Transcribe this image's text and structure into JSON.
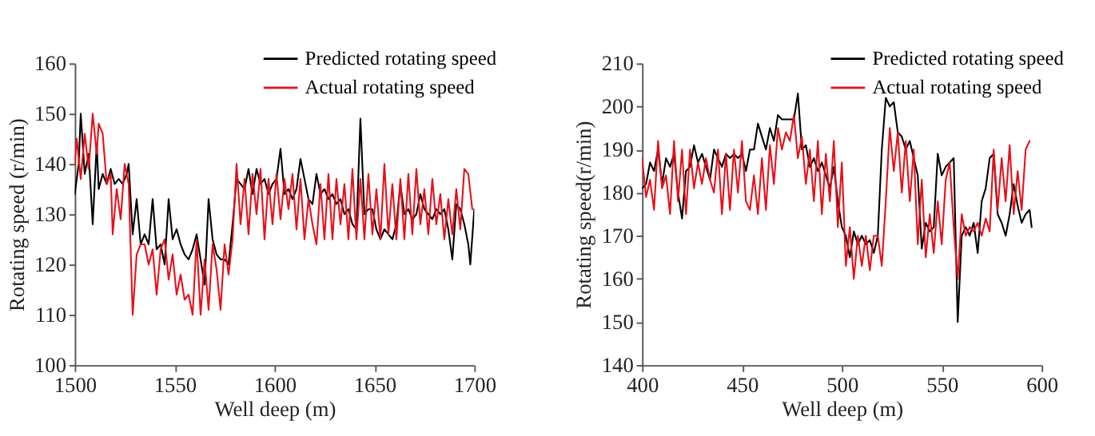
{
  "chart_data": [
    {
      "type": "line",
      "xlabel": "Well deep (m)",
      "ylabel": "Rotating speed (r/min)",
      "xlim": [
        1500,
        1700
      ],
      "xticks": [
        1500,
        1550,
        1600,
        1650,
        1700
      ],
      "ylim": [
        100,
        160
      ],
      "yticks": [
        100,
        110,
        120,
        130,
        140,
        150,
        160
      ],
      "grid": false,
      "legend": "top right",
      "marker": "none",
      "line_style": "solid",
      "series": [
        {
          "name": "Predicted rotating speed",
          "color": "#000000",
          "x": [
            1500,
            1502,
            1503,
            1505,
            1507,
            1509,
            1511,
            1512,
            1514,
            1516,
            1518,
            1520,
            1522,
            1524,
            1526,
            1527,
            1529,
            1531,
            1533,
            1535,
            1537,
            1539,
            1541,
            1543,
            1545,
            1547,
            1549,
            1551,
            1553,
            1555,
            1557,
            1559,
            1561,
            1563,
            1565,
            1567,
            1569,
            1571,
            1573,
            1575,
            1577,
            1579,
            1581,
            1583,
            1585,
            1587,
            1589,
            1591,
            1593,
            1595,
            1597,
            1599,
            1601,
            1603,
            1605,
            1607,
            1609,
            1611,
            1613,
            1615,
            1617,
            1619,
            1621,
            1623,
            1625,
            1627,
            1629,
            1631,
            1633,
            1635,
            1637,
            1639,
            1641,
            1643,
            1645,
            1647,
            1649,
            1651,
            1653,
            1655,
            1657,
            1659,
            1661,
            1663,
            1665,
            1667,
            1669,
            1671,
            1673,
            1675,
            1677,
            1679,
            1681,
            1683,
            1685,
            1687,
            1689,
            1691,
            1693,
            1695,
            1697,
            1698,
            1700
          ],
          "values": [
            134,
            140,
            150,
            138,
            142,
            128,
            144,
            135,
            138,
            136,
            139,
            136,
            137,
            136,
            138,
            140,
            126,
            133,
            124,
            126,
            124,
            133,
            123,
            124,
            120,
            133,
            125,
            127,
            124,
            122,
            121,
            123,
            126,
            121,
            116,
            133,
            125,
            122,
            121,
            121,
            120,
            128,
            137,
            136,
            135,
            139,
            134,
            139,
            136,
            137,
            134,
            136,
            137,
            143,
            134,
            135,
            133,
            135,
            141,
            137,
            133,
            132,
            138,
            134,
            135,
            133,
            134,
            132,
            133,
            130,
            131,
            128,
            127,
            149,
            130,
            131,
            131,
            127,
            125,
            127,
            126,
            125,
            128,
            136,
            130,
            131,
            129,
            130,
            134,
            131,
            130,
            129,
            131,
            130,
            131,
            127,
            121,
            132,
            131,
            128,
            124,
            120,
            131
          ]
        },
        {
          "name": "Actual rotating speed",
          "color": "#e8101a",
          "x": [
            1500,
            1501,
            1503,
            1505,
            1507,
            1509,
            1511,
            1512,
            1514,
            1516,
            1518,
            1519,
            1521,
            1523,
            1525,
            1527,
            1529,
            1531,
            1533,
            1535,
            1537,
            1539,
            1541,
            1543,
            1545,
            1547,
            1549,
            1551,
            1553,
            1555,
            1557,
            1559,
            1561,
            1563,
            1565,
            1567,
            1569,
            1571,
            1573,
            1575,
            1577,
            1579,
            1581,
            1583,
            1585,
            1587,
            1589,
            1591,
            1593,
            1595,
            1597,
            1599,
            1601,
            1603,
            1605,
            1607,
            1609,
            1611,
            1613,
            1615,
            1617,
            1619,
            1621,
            1623,
            1625,
            1627,
            1629,
            1631,
            1633,
            1635,
            1637,
            1639,
            1641,
            1643,
            1645,
            1647,
            1649,
            1651,
            1653,
            1655,
            1657,
            1659,
            1661,
            1663,
            1665,
            1667,
            1669,
            1671,
            1673,
            1675,
            1677,
            1679,
            1681,
            1683,
            1685,
            1687,
            1689,
            1691,
            1693,
            1695,
            1697,
            1699
          ],
          "values": [
            140,
            145,
            137,
            146,
            139,
            150,
            142,
            148,
            146,
            136,
            138,
            126,
            135,
            129,
            140,
            136,
            110,
            122,
            124,
            124,
            120,
            123,
            114,
            123,
            125,
            117,
            122,
            114,
            118,
            113,
            114,
            110,
            125,
            110,
            121,
            111,
            124,
            119,
            111,
            124,
            118,
            125,
            140,
            128,
            137,
            126,
            138,
            130,
            139,
            125,
            137,
            128,
            138,
            129,
            137,
            131,
            138,
            127,
            137,
            125,
            133,
            128,
            124,
            136,
            125,
            138,
            125,
            137,
            128,
            136,
            125,
            139,
            125,
            137,
            125,
            138,
            126,
            135,
            125,
            140,
            126,
            136,
            125,
            137,
            125,
            138,
            126,
            139,
            128,
            135,
            126,
            137,
            128,
            134,
            125,
            133,
            126,
            135,
            127,
            139,
            138,
            131
          ]
        }
      ]
    },
    {
      "type": "line",
      "xlabel": "Well deep (m)",
      "ylabel": "Rotating speed(r/min)",
      "xlim": [
        400,
        600
      ],
      "xticks": [
        400,
        450,
        500,
        550,
        600
      ],
      "ylim": [
        140,
        210
      ],
      "yticks": [
        140,
        150,
        160,
        170,
        180,
        190,
        200,
        210
      ],
      "grid": false,
      "legend": "top right",
      "marker": "none",
      "line_style": "solid",
      "series": [
        {
          "name": "Predicted rotating speed",
          "color": "#000000",
          "x": [
            400,
            402,
            404,
            406,
            408,
            410,
            412,
            414,
            416,
            418,
            420,
            422,
            424,
            426,
            428,
            430,
            432,
            434,
            436,
            438,
            440,
            442,
            444,
            446,
            448,
            450,
            452,
            454,
            456,
            458,
            460,
            462,
            464,
            466,
            468,
            470,
            472,
            474,
            476,
            478,
            480,
            482,
            484,
            486,
            488,
            490,
            492,
            494,
            496,
            498,
            500,
            502,
            504,
            506,
            508,
            510,
            512,
            514,
            516,
            518,
            520,
            522,
            524,
            526,
            528,
            530,
            532,
            534,
            536,
            538,
            540,
            542,
            544,
            546,
            548,
            550,
            552,
            554,
            556,
            558,
            560,
            562,
            564,
            566,
            568,
            570,
            572,
            574,
            576,
            578,
            580,
            582,
            584,
            586,
            588,
            590,
            592,
            594,
            595
          ],
          "values": [
            181,
            182,
            187,
            185,
            190,
            182,
            188,
            186,
            189,
            180,
            174,
            185,
            186,
            191,
            187,
            189,
            186,
            183,
            190,
            188,
            186,
            189,
            188,
            189,
            188,
            189,
            185,
            190,
            190,
            196,
            193,
            190,
            195,
            192,
            198,
            197,
            197,
            197,
            197,
            203,
            190,
            191,
            186,
            188,
            185,
            187,
            184,
            181,
            186,
            178,
            172,
            170,
            165,
            171,
            168,
            170,
            168,
            169,
            166,
            170,
            190,
            202,
            200,
            201,
            194,
            193,
            190,
            192,
            188,
            184,
            167,
            173,
            171,
            172,
            189,
            184,
            186,
            187,
            188,
            150,
            170,
            172,
            170,
            173,
            166,
            178,
            181,
            188,
            189,
            175,
            173,
            170,
            175,
            182,
            177,
            173,
            175,
            176,
            172
          ]
        },
        {
          "name": "Actual rotating speed",
          "color": "#e8101a",
          "x": [
            400,
            402,
            404,
            406,
            408,
            410,
            412,
            414,
            416,
            418,
            420,
            422,
            424,
            426,
            428,
            430,
            432,
            434,
            436,
            438,
            440,
            442,
            444,
            446,
            448,
            450,
            452,
            454,
            456,
            458,
            460,
            462,
            464,
            466,
            468,
            470,
            472,
            474,
            476,
            478,
            480,
            482,
            484,
            486,
            488,
            490,
            492,
            494,
            496,
            498,
            500,
            502,
            504,
            506,
            508,
            510,
            512,
            514,
            516,
            518,
            520,
            522,
            524,
            526,
            528,
            530,
            532,
            534,
            536,
            538,
            540,
            542,
            544,
            546,
            548,
            550,
            552,
            554,
            556,
            558,
            560,
            562,
            564,
            566,
            568,
            570,
            572,
            574,
            576,
            578,
            580,
            582,
            584,
            586,
            588,
            590,
            592,
            594
          ],
          "values": [
            188,
            179,
            183,
            176,
            192,
            181,
            184,
            175,
            192,
            178,
            190,
            175,
            190,
            181,
            187,
            182,
            188,
            183,
            180,
            190,
            175,
            189,
            176,
            190,
            180,
            192,
            178,
            176,
            184,
            175,
            188,
            176,
            191,
            182,
            195,
            190,
            194,
            192,
            198,
            188,
            193,
            182,
            190,
            178,
            192,
            175,
            189,
            178,
            192,
            172,
            187,
            163,
            172,
            160,
            170,
            163,
            170,
            162,
            170,
            170,
            163,
            178,
            195,
            185,
            194,
            180,
            192,
            178,
            190,
            168,
            183,
            165,
            175,
            166,
            178,
            168,
            183,
            187,
            172,
            160,
            175,
            170,
            172,
            171,
            173,
            170,
            174,
            171,
            190,
            176,
            188,
            178,
            191,
            175,
            185,
            176,
            190,
            192
          ]
        }
      ]
    }
  ]
}
